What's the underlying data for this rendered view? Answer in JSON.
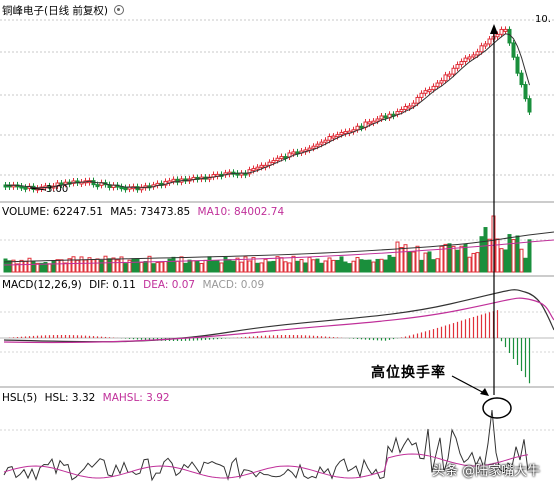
{
  "colors": {
    "up": "#e0303a",
    "down": "#1a8f3c",
    "ma_white": "#333333",
    "ma5": "#333333",
    "ma10": "#c0309a",
    "dea": "#c0309a",
    "annotation": "#000000"
  },
  "header_price": {
    "title": "铜峰电子(日线 前复权)",
    "icon": "gear-icon"
  },
  "header_volume": {
    "volume": "VOLUME: 62247.51",
    "ma5": "MA5: 73473.85",
    "ma10": "MA10: 84002.74"
  },
  "header_macd": {
    "label": "MACD(12,26,9)",
    "dif": "DIF: 0.11",
    "dea": "DEA: 0.07",
    "macd": "MACD: 0.09"
  },
  "header_hsl": {
    "label": "HSL(5)",
    "hsl": "HSL: 3.32",
    "mahsl": "MAHSL: 3.92"
  },
  "price_labels": {
    "low": "3.00",
    "high": "10."
  },
  "annotation": {
    "text": "高位换手率"
  },
  "watermark": {
    "text": "头条 @陆家嘴大牛"
  }
}
